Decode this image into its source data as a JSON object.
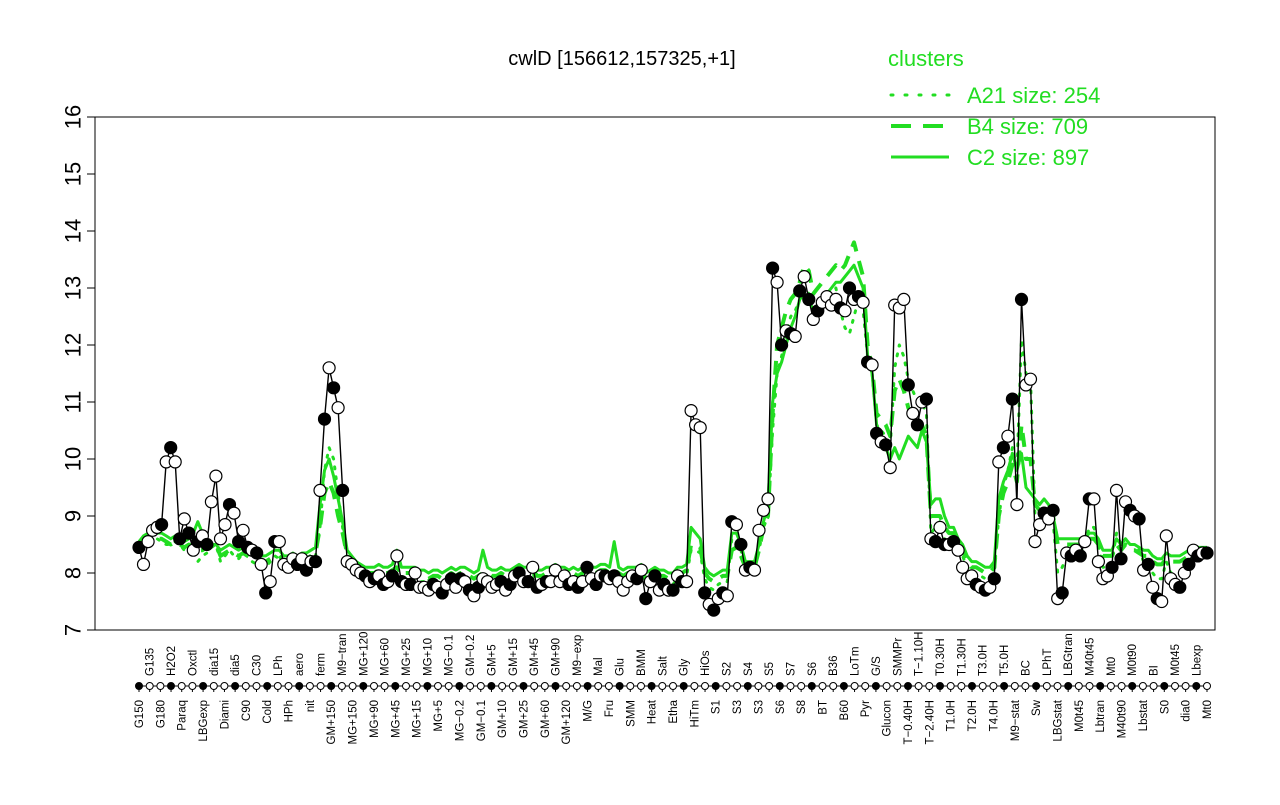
{
  "chart_data": {
    "type": "line",
    "title": "cwlD [156612,157325,+1]",
    "xlabel": "",
    "ylabel": "",
    "ylim": [
      7,
      16
    ],
    "yticks": [
      7,
      8,
      9,
      10,
      11,
      12,
      13,
      14,
      15,
      16
    ],
    "x_tick_labels": [
      "G150",
      "G135",
      "G180",
      "H2O2",
      "Paraq",
      "Oxctl",
      "LBGexp",
      "dia15",
      "Diami",
      "dia5",
      "C90",
      "C30",
      "Cold",
      "LPh",
      "HPh",
      "aero",
      "nit",
      "ferm",
      "GM+150",
      "M9−tran",
      "MG+150",
      "MG+120",
      "MG+90",
      "MG+60",
      "MG+45",
      "MG+25",
      "MG+15",
      "MG+10",
      "MG+5",
      "MG−0.1",
      "MG−0.2",
      "GM−0.2",
      "GM−0.1",
      "GM+5",
      "GM+10",
      "GM+15",
      "GM+25",
      "GM+45",
      "GM+60",
      "GM+90",
      "GM+120",
      "M9−exp",
      "M/G",
      "Mal",
      "Fru",
      "Glu",
      "SMM",
      "BMM",
      "Heat",
      "Salt",
      "Etha",
      "Gly",
      "HiTm",
      "HiOs",
      "S1",
      "S2",
      "S3",
      "S4",
      "S3",
      "S5",
      "S6",
      "S7",
      "S8",
      "S6",
      "BT",
      "B36",
      "B60",
      "LoTm",
      "Pyr",
      "G/S",
      "Glucon",
      "SMMPr",
      "T−0.40H",
      "T−1.10H",
      "T−2.40H",
      "T0.30H",
      "T1.0H",
      "T1.30H",
      "T2.0H",
      "T3.0H",
      "T4.0H",
      "T5.0H",
      "M9−stat",
      "BC",
      "Sw",
      "LPhT",
      "LBGstat",
      "LBGtran",
      "M0t45",
      "M40t45",
      "Lbtran",
      "Mt0",
      "M40t90",
      "M0t90",
      "Lbstat",
      "BI",
      "S0",
      "M0t45",
      "dia0",
      "Lbexp",
      "Mt0"
    ],
    "point_series": [
      8.45,
      8.15,
      8.55,
      8.75,
      8.8,
      8.85,
      9.95,
      10.2,
      9.95,
      8.6,
      8.95,
      8.7,
      8.4,
      8.55,
      8.65,
      8.5,
      9.25,
      9.7,
      8.6,
      8.85,
      9.2,
      9.05,
      8.55,
      8.75,
      8.45,
      8.4,
      8.35,
      8.15,
      7.65,
      7.85,
      8.55,
      8.55,
      8.15,
      8.1,
      8.25,
      8.15,
      8.25,
      8.05,
      8.2,
      8.2,
      9.45,
      10.7,
      11.6,
      11.25,
      10.9,
      9.45,
      8.2,
      8.15,
      8.05,
      8.0,
      7.95,
      7.85,
      7.9,
      7.95,
      7.8,
      7.85,
      7.95,
      8.3,
      7.85,
      7.8,
      7.8,
      8.0,
      7.75,
      7.75,
      7.7,
      7.8,
      7.75,
      7.65,
      7.8,
      7.9,
      7.75,
      7.9,
      7.85,
      7.7,
      7.6,
      7.75,
      7.9,
      7.85,
      7.75,
      7.8,
      7.85,
      7.7,
      7.8,
      7.95,
      8.0,
      7.85,
      7.85,
      8.1,
      7.75,
      7.8,
      7.85,
      7.85,
      8.05,
      7.85,
      7.95,
      7.8,
      7.85,
      7.75,
      7.85,
      8.1,
      7.9,
      7.8,
      7.95,
      7.95,
      7.9,
      7.95,
      7.85,
      7.7,
      7.85,
      7.95,
      7.9,
      8.05,
      7.55,
      7.85,
      7.95,
      7.7,
      7.8,
      7.7,
      7.7,
      7.95,
      7.85,
      7.85,
      10.85,
      10.6,
      10.55,
      7.65,
      7.45,
      7.35,
      7.55,
      7.65,
      7.6,
      8.9,
      8.85,
      8.5,
      8.05,
      8.1,
      8.05,
      8.75,
      9.1,
      9.3,
      13.35,
      13.1,
      12.0,
      12.25,
      12.2,
      12.15,
      12.95,
      13.2,
      12.8,
      12.45,
      12.6,
      12.75,
      12.85,
      12.7,
      12.8,
      12.65,
      12.6,
      13.0,
      12.8,
      12.85,
      12.75,
      11.7,
      11.65,
      10.45,
      10.3,
      10.25,
      9.85,
      12.7,
      12.65,
      12.8,
      11.3,
      10.8,
      10.6,
      11.0,
      11.05,
      8.6,
      8.55,
      8.8,
      8.5,
      8.5,
      8.55,
      8.4,
      8.1,
      7.9,
      7.95,
      7.8,
      7.75,
      7.7,
      7.75,
      7.9,
      9.95,
      10.2,
      10.4,
      11.05,
      9.2,
      12.8,
      11.3,
      11.4,
      8.55,
      8.85,
      9.05,
      8.95,
      9.1,
      7.55,
      7.65,
      8.35,
      8.3,
      8.4,
      8.3,
      8.55,
      9.3,
      9.3,
      8.2,
      7.9,
      7.95,
      8.1,
      9.45,
      8.25,
      9.25,
      9.1,
      9.0,
      8.95,
      8.05,
      8.15,
      7.75,
      7.55,
      7.5,
      8.65,
      7.9,
      7.8,
      7.75,
      8.0,
      8.15,
      8.4,
      8.3,
      8.35,
      8.35
    ],
    "series": [
      {
        "name": "A21 size: 254",
        "style": "dotted",
        "values": [
          8.4,
          8.5,
          8.55,
          8.7,
          8.6,
          8.55,
          8.5,
          8.5,
          8.55,
          8.5,
          8.4,
          8.5,
          8.4,
          8.2,
          8.3,
          8.35,
          8.45,
          8.5,
          8.2,
          8.3,
          8.4,
          8.3,
          8.25,
          8.35,
          8.3,
          8.2,
          8.15,
          8.1,
          8.1,
          8.2,
          8.3,
          8.25,
          8.15,
          8.15,
          8.2,
          8.15,
          8.25,
          8.2,
          8.25,
          8.3,
          8.8,
          9.8,
          10.2,
          10.0,
          9.4,
          8.8,
          8.2,
          8.1,
          8.05,
          8.0,
          7.95,
          7.95,
          7.95,
          8.0,
          7.9,
          7.95,
          8.0,
          8.1,
          7.95,
          7.9,
          7.9,
          7.9,
          7.85,
          7.85,
          7.8,
          7.85,
          7.85,
          7.8,
          7.85,
          7.9,
          7.85,
          7.9,
          7.9,
          7.85,
          7.8,
          7.85,
          7.9,
          7.9,
          7.85,
          7.85,
          7.9,
          7.85,
          7.85,
          7.9,
          7.95,
          7.9,
          7.9,
          8.0,
          7.85,
          7.85,
          7.9,
          7.9,
          7.95,
          7.9,
          7.9,
          7.85,
          7.9,
          7.85,
          7.9,
          8.0,
          7.9,
          7.9,
          7.95,
          7.95,
          7.9,
          7.95,
          7.9,
          7.85,
          7.9,
          7.9,
          7.9,
          7.95,
          7.8,
          7.85,
          7.9,
          7.85,
          7.85,
          7.8,
          7.8,
          7.9,
          7.9,
          7.95,
          8.4,
          8.4,
          8.35,
          7.9,
          7.75,
          7.7,
          7.8,
          7.85,
          7.85,
          8.6,
          8.6,
          8.4,
          8.1,
          8.1,
          8.1,
          8.4,
          8.8,
          9.0,
          10.5,
          11.5,
          11.8,
          12.2,
          12.5,
          12.6,
          12.8,
          13.0,
          12.9,
          12.5,
          12.6,
          12.7,
          12.8,
          12.9,
          13.0,
          12.6,
          12.3,
          12.2,
          12.5,
          12.8,
          12.6,
          11.8,
          11.5,
          10.6,
          10.5,
          10.4,
          10.2,
          11.6,
          12.0,
          11.8,
          11.4,
          11.2,
          11.0,
          11.0,
          10.8,
          8.7,
          8.8,
          8.9,
          8.6,
          8.5,
          8.5,
          8.3,
          8.3,
          8.1,
          8.0,
          8.0,
          7.95,
          7.9,
          7.9,
          8.0,
          9.0,
          9.5,
          9.8,
          10.2,
          9.8,
          12.1,
          11.5,
          11.4,
          9.0,
          9.0,
          9.1,
          9.0,
          8.9,
          8.0,
          8.1,
          8.3,
          8.35,
          8.4,
          8.35,
          8.5,
          8.8,
          8.8,
          8.5,
          8.1,
          8.1,
          8.2,
          8.7,
          8.5,
          8.6,
          8.5,
          8.5,
          8.4,
          8.2,
          8.2,
          8.0,
          7.9,
          7.9,
          8.2,
          8.0,
          8.0,
          8.0,
          8.1,
          8.2,
          8.3,
          8.3,
          8.35,
          8.35
        ]
      },
      {
        "name": "B4 size: 709",
        "style": "dashed",
        "values": [
          8.5,
          8.55,
          8.6,
          8.65,
          8.6,
          8.6,
          8.55,
          8.5,
          8.55,
          8.5,
          8.45,
          8.5,
          8.45,
          8.4,
          8.4,
          8.45,
          8.5,
          8.5,
          8.3,
          8.35,
          8.4,
          8.35,
          8.3,
          8.35,
          8.3,
          8.25,
          8.2,
          8.2,
          8.2,
          8.25,
          8.3,
          8.3,
          8.2,
          8.2,
          8.25,
          8.2,
          8.25,
          8.25,
          8.3,
          8.35,
          8.8,
          9.4,
          9.6,
          9.4,
          9.0,
          8.7,
          8.3,
          8.2,
          8.1,
          8.05,
          8.0,
          8.0,
          8.0,
          8.05,
          8.0,
          8.0,
          8.05,
          8.1,
          8.0,
          8.0,
          8.0,
          8.0,
          7.95,
          7.95,
          7.9,
          7.95,
          7.95,
          7.9,
          7.95,
          8.0,
          7.95,
          8.0,
          8.0,
          7.95,
          7.9,
          7.95,
          8.0,
          8.0,
          7.95,
          7.95,
          8.0,
          7.95,
          7.95,
          8.0,
          8.05,
          8.0,
          8.0,
          8.05,
          7.95,
          7.95,
          8.0,
          8.0,
          8.05,
          8.0,
          8.0,
          7.95,
          8.0,
          7.95,
          8.0,
          8.05,
          8.0,
          8.0,
          8.05,
          8.05,
          8.0,
          8.05,
          8.0,
          7.95,
          8.0,
          8.0,
          8.0,
          8.05,
          7.9,
          7.95,
          8.0,
          7.95,
          7.95,
          7.9,
          7.9,
          8.0,
          8.0,
          8.05,
          8.5,
          8.5,
          8.45,
          8.0,
          7.9,
          7.85,
          7.9,
          7.95,
          7.95,
          8.4,
          8.45,
          8.3,
          8.1,
          8.1,
          8.1,
          8.4,
          8.8,
          9.0,
          10.8,
          12.0,
          12.3,
          12.6,
          12.8,
          12.9,
          13.1,
          13.4,
          13.3,
          12.9,
          13.0,
          13.1,
          13.2,
          13.3,
          13.4,
          13.3,
          13.4,
          13.6,
          13.8,
          13.5,
          13.2,
          12.0,
          11.6,
          10.8,
          10.7,
          10.6,
          10.4,
          11.2,
          11.4,
          11.2,
          10.9,
          10.7,
          10.6,
          10.6,
          10.4,
          9.0,
          9.0,
          9.0,
          8.8,
          8.7,
          8.7,
          8.5,
          8.4,
          8.2,
          8.1,
          8.1,
          8.05,
          8.0,
          8.0,
          8.1,
          9.0,
          9.4,
          9.6,
          9.9,
          9.6,
          10.6,
          10.0,
          10.0,
          9.2,
          9.1,
          9.2,
          9.1,
          9.0,
          8.5,
          8.5,
          8.5,
          8.5,
          8.5,
          8.5,
          8.5,
          8.6,
          8.6,
          8.5,
          8.3,
          8.3,
          8.3,
          8.5,
          8.4,
          8.5,
          8.4,
          8.4,
          8.35,
          8.3,
          8.3,
          8.2,
          8.15,
          8.15,
          8.25,
          8.2,
          8.2,
          8.2,
          8.25,
          8.3,
          8.3,
          8.35,
          8.35,
          8.35
        ]
      },
      {
        "name": "C2 size: 897",
        "style": "solid",
        "values": [
          8.55,
          8.65,
          8.7,
          8.75,
          8.7,
          8.7,
          8.65,
          8.6,
          8.65,
          8.6,
          8.55,
          8.6,
          8.7,
          8.9,
          8.7,
          8.6,
          8.5,
          8.5,
          8.4,
          8.45,
          8.5,
          8.45,
          8.4,
          8.45,
          8.4,
          8.35,
          8.3,
          8.3,
          8.3,
          8.35,
          8.4,
          8.4,
          8.3,
          8.3,
          8.35,
          8.3,
          8.35,
          8.35,
          8.4,
          8.45,
          9.2,
          9.8,
          10.0,
          9.7,
          9.3,
          8.9,
          8.4,
          8.3,
          8.2,
          8.15,
          8.1,
          8.1,
          8.1,
          8.15,
          8.1,
          8.1,
          8.15,
          8.4,
          8.1,
          8.1,
          8.1,
          8.1,
          8.05,
          8.05,
          8.0,
          8.05,
          8.05,
          8.0,
          8.05,
          8.1,
          8.05,
          8.1,
          8.1,
          8.05,
          8.0,
          8.05,
          8.4,
          8.1,
          8.05,
          8.05,
          8.1,
          8.05,
          8.05,
          8.1,
          8.15,
          8.1,
          8.1,
          8.15,
          8.05,
          8.05,
          8.1,
          8.1,
          8.15,
          8.1,
          8.1,
          8.05,
          8.1,
          8.05,
          8.1,
          8.15,
          8.1,
          8.1,
          8.15,
          8.15,
          8.1,
          8.55,
          8.1,
          8.05,
          8.1,
          8.1,
          8.1,
          8.15,
          8.0,
          8.05,
          8.1,
          8.05,
          8.05,
          8.0,
          8.0,
          8.1,
          8.1,
          8.15,
          8.8,
          8.7,
          8.6,
          8.1,
          8.0,
          7.95,
          8.0,
          8.05,
          8.05,
          8.7,
          8.7,
          8.5,
          8.2,
          8.2,
          8.2,
          8.5,
          8.9,
          9.2,
          11.0,
          11.5,
          11.7,
          12.0,
          12.3,
          12.5,
          12.8,
          12.9,
          12.8,
          12.6,
          12.7,
          12.8,
          12.9,
          13.0,
          13.1,
          13.1,
          13.2,
          13.3,
          13.4,
          13.2,
          13.0,
          11.8,
          11.5,
          10.6,
          10.4,
          10.2,
          10.0,
          10.2,
          10.0,
          10.2,
          10.4,
          10.3,
          10.2,
          10.5,
          10.3,
          9.2,
          9.3,
          9.3,
          9.0,
          8.8,
          8.8,
          8.6,
          8.5,
          8.3,
          8.2,
          8.2,
          8.15,
          8.1,
          8.1,
          8.2,
          9.3,
          9.6,
          9.8,
          10.1,
          9.8,
          10.1,
          9.5,
          9.4,
          9.3,
          9.2,
          9.3,
          9.2,
          9.0,
          8.6,
          8.6,
          8.6,
          8.6,
          8.6,
          8.6,
          8.6,
          8.7,
          8.7,
          8.6,
          8.4,
          8.4,
          8.4,
          8.6,
          8.5,
          8.6,
          8.5,
          8.5,
          8.45,
          8.4,
          8.4,
          8.3,
          8.25,
          8.25,
          8.35,
          8.3,
          8.3,
          8.3,
          8.35,
          8.4,
          8.4,
          8.45,
          8.45,
          8.45
        ]
      }
    ],
    "legend": {
      "title": "clusters",
      "position": "top-right",
      "color": "#22dd22"
    },
    "grid": false,
    "series_color": "#22dd22"
  }
}
